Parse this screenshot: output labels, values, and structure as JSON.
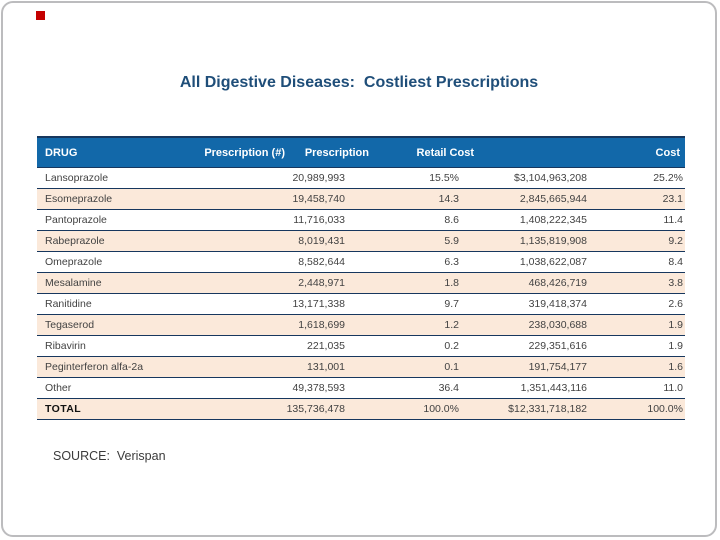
{
  "slide": {
    "title": "All Digestive Diseases:  Costliest Prescriptions",
    "source": "SOURCE:  Verispan",
    "colors": {
      "header_bg": "#1268a9",
      "border": "#17375e",
      "stripe": "#fbe9da",
      "title": "#1f4e79",
      "red_mark": "#c40000"
    }
  },
  "table": {
    "headers": [
      "DRUG",
      "Prescription (#)",
      "Prescription",
      "Retail Cost",
      "Cost"
    ],
    "rows": [
      {
        "drug": "Lansoprazole",
        "prescriptions": "20,989,993",
        "prescription_pct": "15.5%",
        "retail_cost": "$3,104,963,208",
        "cost_pct": "25.2%",
        "is_total": false
      },
      {
        "drug": "Esomeprazole",
        "prescriptions": "19,458,740",
        "prescription_pct": "14.3",
        "retail_cost": "2,845,665,944",
        "cost_pct": "23.1",
        "is_total": false
      },
      {
        "drug": "Pantoprazole",
        "prescriptions": "11,716,033",
        "prescription_pct": "8.6",
        "retail_cost": "1,408,222,345",
        "cost_pct": "11.4",
        "is_total": false
      },
      {
        "drug": "Rabeprazole",
        "prescriptions": "8,019,431",
        "prescription_pct": "5.9",
        "retail_cost": "1,135,819,908",
        "cost_pct": "9.2",
        "is_total": false
      },
      {
        "drug": "Omeprazole",
        "prescriptions": "8,582,644",
        "prescription_pct": "6.3",
        "retail_cost": "1,038,622,087",
        "cost_pct": "8.4",
        "is_total": false
      },
      {
        "drug": "Mesalamine",
        "prescriptions": "2,448,971",
        "prescription_pct": "1.8",
        "retail_cost": "468,426,719",
        "cost_pct": "3.8",
        "is_total": false
      },
      {
        "drug": "Ranitidine",
        "prescriptions": "13,171,338",
        "prescription_pct": "9.7",
        "retail_cost": "319,418,374",
        "cost_pct": "2.6",
        "is_total": false
      },
      {
        "drug": "Tegaserod",
        "prescriptions": "1,618,699",
        "prescription_pct": "1.2",
        "retail_cost": "238,030,688",
        "cost_pct": "1.9",
        "is_total": false
      },
      {
        "drug": "Ribavirin",
        "prescriptions": "221,035",
        "prescription_pct": "0.2",
        "retail_cost": "229,351,616",
        "cost_pct": "1.9",
        "is_total": false
      },
      {
        "drug": "Peginterferon alfa-2a",
        "prescriptions": "131,001",
        "prescription_pct": "0.1",
        "retail_cost": "191,754,177",
        "cost_pct": "1.6",
        "is_total": false
      },
      {
        "drug": "Other",
        "prescriptions": "49,378,593",
        "prescription_pct": "36.4",
        "retail_cost": "1,351,443,116",
        "cost_pct": "11.0",
        "is_total": false
      },
      {
        "drug": "TOTAL",
        "prescriptions": "135,736,478",
        "prescription_pct": "100.0%",
        "retail_cost": "$12,331,718,182",
        "cost_pct": "100.0%",
        "is_total": true
      }
    ]
  }
}
